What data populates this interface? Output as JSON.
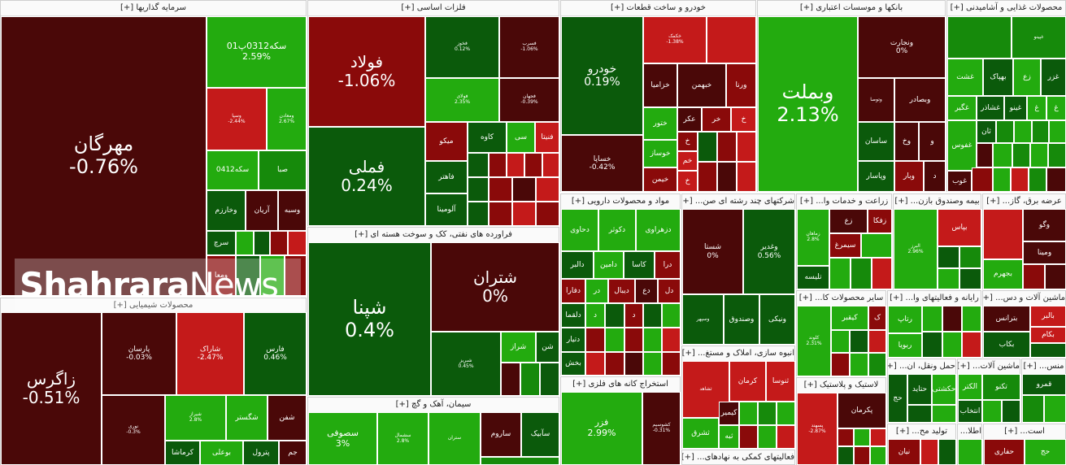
{
  "colors": {
    "dark_red": "#4a0808",
    "mid_red": "#8a0a0a",
    "red": "#c41a1a",
    "dark_green": "#0b5a0b",
    "mid_green": "#168a0b",
    "light_green": "#23ab0f"
  },
  "sectors": [
    {
      "id": "investments",
      "header": "سرمایه گذاریها [+]"
    },
    {
      "id": "metals",
      "header": "فلزات اساسی [+]"
    },
    {
      "id": "auto",
      "header": "خودرو و ساخت قطعات [+]"
    },
    {
      "id": "banks",
      "header": "بانکها و موسسات اعتباری [+]"
    },
    {
      "id": "food",
      "header": "محصولات غذایی و آشامیدنی [+]"
    },
    {
      "id": "chemicals",
      "header": "محصولات شیمیایی [+]"
    },
    {
      "id": "oil",
      "header": "فراورده های نفتی، کک و سوخت هسته ای [+]"
    },
    {
      "id": "cement",
      "header": "سیمان، آهک و گچ [+]"
    },
    {
      "id": "pharma",
      "header": "مواد و محصولات دارویی [+]"
    },
    {
      "id": "mining",
      "header": "استخراج کانه های فلزی [+]"
    },
    {
      "id": "multi",
      "header": "شرکتهای چند رشته ای صن... [+]"
    },
    {
      "id": "agri",
      "header": "زراعت و خدمات وا... [+]"
    },
    {
      "id": "insurance",
      "header": "بیمه وصندوق بازن... [+]"
    },
    {
      "id": "power",
      "header": "عرضه برق، گاز... [+]"
    },
    {
      "id": "realestate",
      "header": "انبوه سازی، املاک و مستغ... [+]"
    },
    {
      "id": "othermin",
      "header": "سایر محصولات کا... [+]"
    },
    {
      "id": "it",
      "header": "رایانه و فعالیتهای وا... [+]"
    },
    {
      "id": "machinery",
      "header": "ماشین آلات و دس... [+]"
    },
    {
      "id": "rubber",
      "header": "لاستیک و پلاستیک [+]"
    },
    {
      "id": "transport",
      "header": "حمل ونقل، ان... [+]"
    },
    {
      "id": "electrical",
      "header": "ماشین آلات... [+]"
    },
    {
      "id": "aux",
      "header": "فعالیتهای کمکی به نهادهای... [+]"
    },
    {
      "id": "textile",
      "header": "تولید مح... [+]"
    },
    {
      "id": "telecom",
      "header": "اطلا... [+]"
    },
    {
      "id": "tools",
      "header": "است... [+]"
    },
    {
      "id": "pr",
      "header": "منس... [+]"
    }
  ],
  "cells": [
    {
      "name": "مهرگان",
      "pct": "-0.76%"
    },
    {
      "name": "سکه0312پ01",
      "pct": "2.59%"
    },
    {
      "name": "وسپا",
      "pct": "-2.44%"
    },
    {
      "name": "ومعادن",
      "pct": "2.67%"
    },
    {
      "name": "سکه0412",
      "pct": ""
    },
    {
      "name": "صبا",
      "pct": ""
    },
    {
      "name": "وخارزم",
      "pct": ""
    },
    {
      "name": "آریان",
      "pct": ""
    },
    {
      "name": "وسبه",
      "pct": ""
    },
    {
      "name": "سرچ",
      "pct": ""
    },
    {
      "name": "ومعا",
      "pct": ""
    },
    {
      "name": "فولاد",
      "pct": "-1.06%"
    },
    {
      "name": "فخوز",
      "pct": "0.12%"
    },
    {
      "name": "فسرب",
      "pct": "-1.06%"
    },
    {
      "name": "فولای",
      "pct": "2.35%"
    },
    {
      "name": "فجهان",
      "pct": "-0.39%"
    },
    {
      "name": "فملی",
      "pct": "0.24%"
    },
    {
      "name": "میکو",
      "pct": ""
    },
    {
      "name": "کاوه",
      "pct": ""
    },
    {
      "name": "فنیتا",
      "pct": ""
    },
    {
      "name": "فاهتر",
      "pct": ""
    },
    {
      "name": "آلومینا",
      "pct": ""
    },
    {
      "name": "خودرو",
      "pct": "0.19%"
    },
    {
      "name": "خکمک",
      "pct": "-1.38%"
    },
    {
      "name": "خساپا",
      "pct": "-0.42%"
    },
    {
      "name": "خزامیا",
      "pct": ""
    },
    {
      "name": "خبهمن",
      "pct": ""
    },
    {
      "name": "ورنا",
      "pct": ""
    },
    {
      "name": "ختور",
      "pct": ""
    },
    {
      "name": "خوساز",
      "pct": ""
    },
    {
      "name": "خمحور",
      "pct": ""
    },
    {
      "name": "خیمن",
      "pct": ""
    },
    {
      "name": "وبملت",
      "pct": "2.13%"
    },
    {
      "name": "ونجارت",
      "pct": "0%"
    },
    {
      "name": "وبصادر",
      "pct": ""
    },
    {
      "name": "ساسان",
      "pct": ""
    },
    {
      "name": "وپاسار",
      "pct": ""
    },
    {
      "name": "غشت",
      "pct": ""
    },
    {
      "name": "بهپاک",
      "pct": ""
    },
    {
      "name": "غزر",
      "pct": ""
    },
    {
      "name": "غگیر",
      "pct": ""
    },
    {
      "name": "غشاذر",
      "pct": ""
    },
    {
      "name": "غفوس",
      "pct": ""
    },
    {
      "name": "زاگرس",
      "pct": "-0.51%"
    },
    {
      "name": "پارسان",
      "pct": "-0.03%"
    },
    {
      "name": "شاراک",
      "pct": "-2.47%"
    },
    {
      "name": "فارس",
      "pct": "0.46%"
    },
    {
      "name": "نوری",
      "pct": "-0.3%"
    },
    {
      "name": "شگستر",
      "pct": ""
    },
    {
      "name": "شفن",
      "pct": ""
    },
    {
      "name": "بوعلی",
      "pct": ""
    },
    {
      "name": "پترول",
      "pct": ""
    },
    {
      "name": "کرماشا",
      "pct": ""
    },
    {
      "name": "شپنا",
      "pct": "0.4%"
    },
    {
      "name": "شتران",
      "pct": "0%"
    },
    {
      "name": "شبریز",
      "pct": "0.45%"
    },
    {
      "name": "شراز",
      "pct": ""
    },
    {
      "name": "سصوفی",
      "pct": "3%"
    },
    {
      "name": "ساروم",
      "pct": ""
    },
    {
      "name": "سآبیک",
      "pct": ""
    },
    {
      "name": "دحاوی",
      "pct": ""
    },
    {
      "name": "دکوثر",
      "pct": ""
    },
    {
      "name": "دزهراوی",
      "pct": ""
    },
    {
      "name": "دالبر",
      "pct": ""
    },
    {
      "name": "دامین",
      "pct": ""
    },
    {
      "name": "کاسا",
      "pct": ""
    },
    {
      "name": "دلقما",
      "pct": ""
    },
    {
      "name": "دیبال",
      "pct": ""
    },
    {
      "name": "دفارا",
      "pct": ""
    },
    {
      "name": "بخش",
      "pct": ""
    },
    {
      "name": "فزر",
      "pct": "2.99%"
    },
    {
      "name": "کشوسیم",
      "pct": "-0.31%"
    },
    {
      "name": "شستا",
      "pct": "0%"
    },
    {
      "name": "وغدیر",
      "pct": "0.56%"
    },
    {
      "name": "وصندوق",
      "pct": ""
    },
    {
      "name": "ونیکی",
      "pct": ""
    },
    {
      "name": "زفکا",
      "pct": ""
    },
    {
      "name": "سیمرغ",
      "pct": ""
    },
    {
      "name": "تلیسه",
      "pct": ""
    },
    {
      "name": "البرز",
      "pct": "2.96%"
    },
    {
      "name": "بپاس",
      "pct": ""
    },
    {
      "name": "وگو",
      "pct": ""
    },
    {
      "name": "ومینا",
      "pct": ""
    },
    {
      "name": "بجهرم",
      "pct": ""
    },
    {
      "name": "ثشاهد",
      "pct": ""
    },
    {
      "name": "کرمان",
      "pct": ""
    },
    {
      "name": "ثنوسا",
      "pct": ""
    },
    {
      "name": "ثشرق",
      "pct": ""
    },
    {
      "name": "کیمیر",
      "pct": ""
    },
    {
      "name": "کلوند",
      "pct": "2.31%"
    },
    {
      "name": "کیقبر",
      "pct": ""
    },
    {
      "name": "رتاپ",
      "pct": ""
    },
    {
      "name": "ربویا",
      "pct": ""
    },
    {
      "name": "بالبر",
      "pct": ""
    },
    {
      "name": "بترانس",
      "pct": ""
    },
    {
      "name": "بکام",
      "pct": ""
    },
    {
      "name": "بکاب",
      "pct": ""
    },
    {
      "name": "پسهند",
      "pct": "-2.87%"
    },
    {
      "name": "پکرمان",
      "pct": ""
    },
    {
      "name": "حتاید",
      "pct": ""
    },
    {
      "name": "حکشتی",
      "pct": ""
    },
    {
      "name": "انتخاب",
      "pct": ""
    },
    {
      "name": "تکنو",
      "pct": ""
    },
    {
      "name": "قمرو",
      "pct": ""
    },
    {
      "name": "حفاری",
      "pct": ""
    },
    {
      "name": "نیان",
      "pct": ""
    },
    {
      "name": "حج",
      "pct": ""
    }
  ],
  "watermark": {
    "part1": "Shahrara",
    "part2": "News"
  }
}
